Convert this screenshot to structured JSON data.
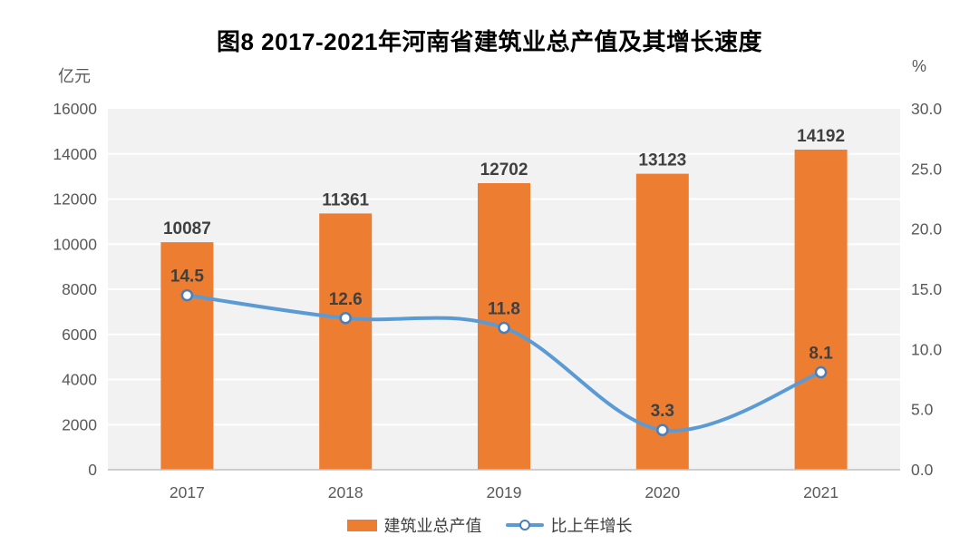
{
  "title": "图8 2017-2021年河南省建筑业总产值及其增长速度",
  "chart_data": {
    "type": "bar",
    "combo": [
      "bar",
      "line"
    ],
    "title": "图8 2017-2021年河南省建筑业总产值及其增长速度",
    "categories": [
      "2017",
      "2018",
      "2019",
      "2020",
      "2021"
    ],
    "series": [
      {
        "name": "建筑业总产值",
        "type": "bar",
        "axis": "left",
        "values": [
          10087,
          11361,
          12702,
          13123,
          14192
        ],
        "labels": [
          "10087",
          "11361",
          "12702",
          "13123",
          "14192"
        ],
        "color": "#ED7D31"
      },
      {
        "name": "比上年增长",
        "type": "line",
        "axis": "right",
        "values": [
          14.5,
          12.6,
          11.8,
          3.3,
          8.1
        ],
        "labels": [
          "14.5",
          "12.6",
          "11.8",
          "3.3",
          "8.1"
        ],
        "color": "#5B9BD5",
        "marker_fill": "#FFFFFF",
        "marker_stroke": "#4A7EBB"
      }
    ],
    "axes": {
      "left": {
        "unit": "亿元",
        "min": 0,
        "max": 16000,
        "step": 2000,
        "ticks": [
          "0",
          "2000",
          "4000",
          "6000",
          "8000",
          "10000",
          "12000",
          "14000",
          "16000"
        ]
      },
      "right": {
        "unit": "%",
        "min": 0,
        "max": 30,
        "step": 5,
        "ticks": [
          "0.0",
          "5.0",
          "10.0",
          "15.0",
          "20.0",
          "25.0",
          "30.0"
        ]
      }
    },
    "grid": true,
    "legend_position": "bottom",
    "styles": {
      "plot_bg": "#F2F2F2",
      "gridline": "#FFFFFF",
      "axis_line": "#BFBFBF",
      "tick_color": "#595959",
      "data_label_color": "#404040"
    }
  },
  "legend": {
    "items": [
      {
        "label": "建筑业总产值",
        "marker": "bar-swatch"
      },
      {
        "label": "比上年增长",
        "marker": "line-marker"
      }
    ]
  }
}
